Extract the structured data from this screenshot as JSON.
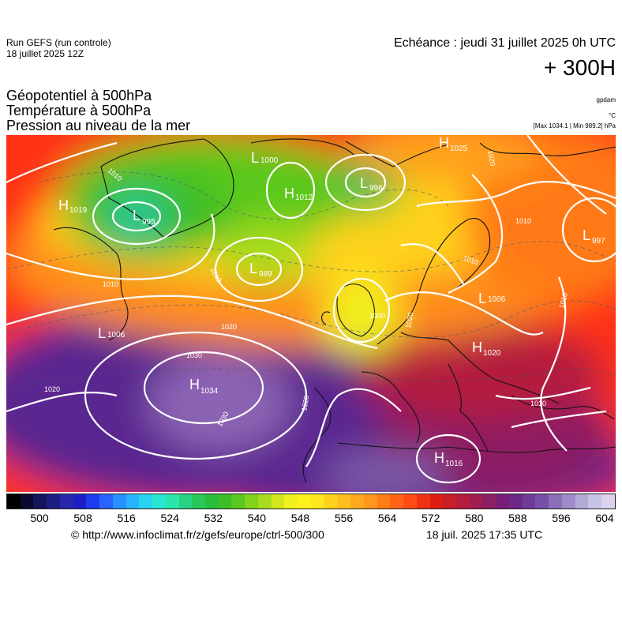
{
  "header": {
    "run_name": "Run GEFS (run controle)",
    "run_date": "18 juillet 2025 12Z",
    "echeance": "Echéance : jeudi 31 juillet 2025 0h UTC",
    "lead": "+ 300H"
  },
  "titles": {
    "line1": "Géopotentiel à 500hPa",
    "line2": "Température à 500hPa",
    "line3": "Pression au niveau de la mer"
  },
  "units": {
    "gpdam": "gpdam",
    "celsius": "°C",
    "pressure_range": "[Max 1034.1 | Min 989.2] hPa"
  },
  "scale": {
    "colors": [
      "#000000",
      "#0a0a30",
      "#14145a",
      "#1e1e82",
      "#2828aa",
      "#1e1ec8",
      "#1e3cf0",
      "#2864ff",
      "#2890ff",
      "#28b4ff",
      "#28d2f0",
      "#28e6d2",
      "#28e6aa",
      "#28d282",
      "#28c85a",
      "#28be3c",
      "#3cbe28",
      "#5ac81e",
      "#82d21e",
      "#aadc1e",
      "#d2e61e",
      "#f0f01e",
      "#fff01e",
      "#ffe61e",
      "#ffd21e",
      "#ffbe1e",
      "#ffaa1e",
      "#ff961e",
      "#ff7d14",
      "#ff6414",
      "#ff4b14",
      "#f03214",
      "#dc1e14",
      "#c81e28",
      "#b41e3c",
      "#a01e50",
      "#8c1e64",
      "#781e78",
      "#6e2888",
      "#6e3c96",
      "#7850a8",
      "#8c6eb9",
      "#a08cc8",
      "#b4aad7",
      "#c8c3e6",
      "#dcd2f0"
    ],
    "ticks": [
      "500",
      "508",
      "516",
      "524",
      "532",
      "540",
      "548",
      "556",
      "564",
      "572",
      "580",
      "588",
      "596",
      "604"
    ]
  },
  "footer": {
    "url": "© http://www.infoclimat.fr/z/gefs/europe/ctrl-500/300",
    "generated": "18 juil. 2025 17:35 UTC"
  },
  "map": {
    "pressure_centers": [
      {
        "type": "H",
        "value": "1019"
      },
      {
        "type": "L",
        "value": "995"
      },
      {
        "type": "L",
        "value": "1000"
      },
      {
        "type": "H",
        "value": "1012"
      },
      {
        "type": "L",
        "value": "996"
      },
      {
        "type": "H",
        "value": "1025"
      },
      {
        "type": "L",
        "value": "997"
      },
      {
        "type": "L",
        "value": "989"
      },
      {
        "type": "L",
        "value": "1006"
      },
      {
        "type": "L",
        "value": "1006"
      },
      {
        "type": "H",
        "value": "1020"
      },
      {
        "type": "H",
        "value": "1034"
      },
      {
        "type": "H",
        "value": "1016"
      }
    ],
    "isobar_labels": [
      "1010",
      "1010",
      "1020",
      "1010",
      "1010",
      "1020",
      "1020",
      "1030",
      "1030",
      "1020",
      "1010",
      "1010",
      "1010",
      "1000",
      "1020"
    ]
  }
}
